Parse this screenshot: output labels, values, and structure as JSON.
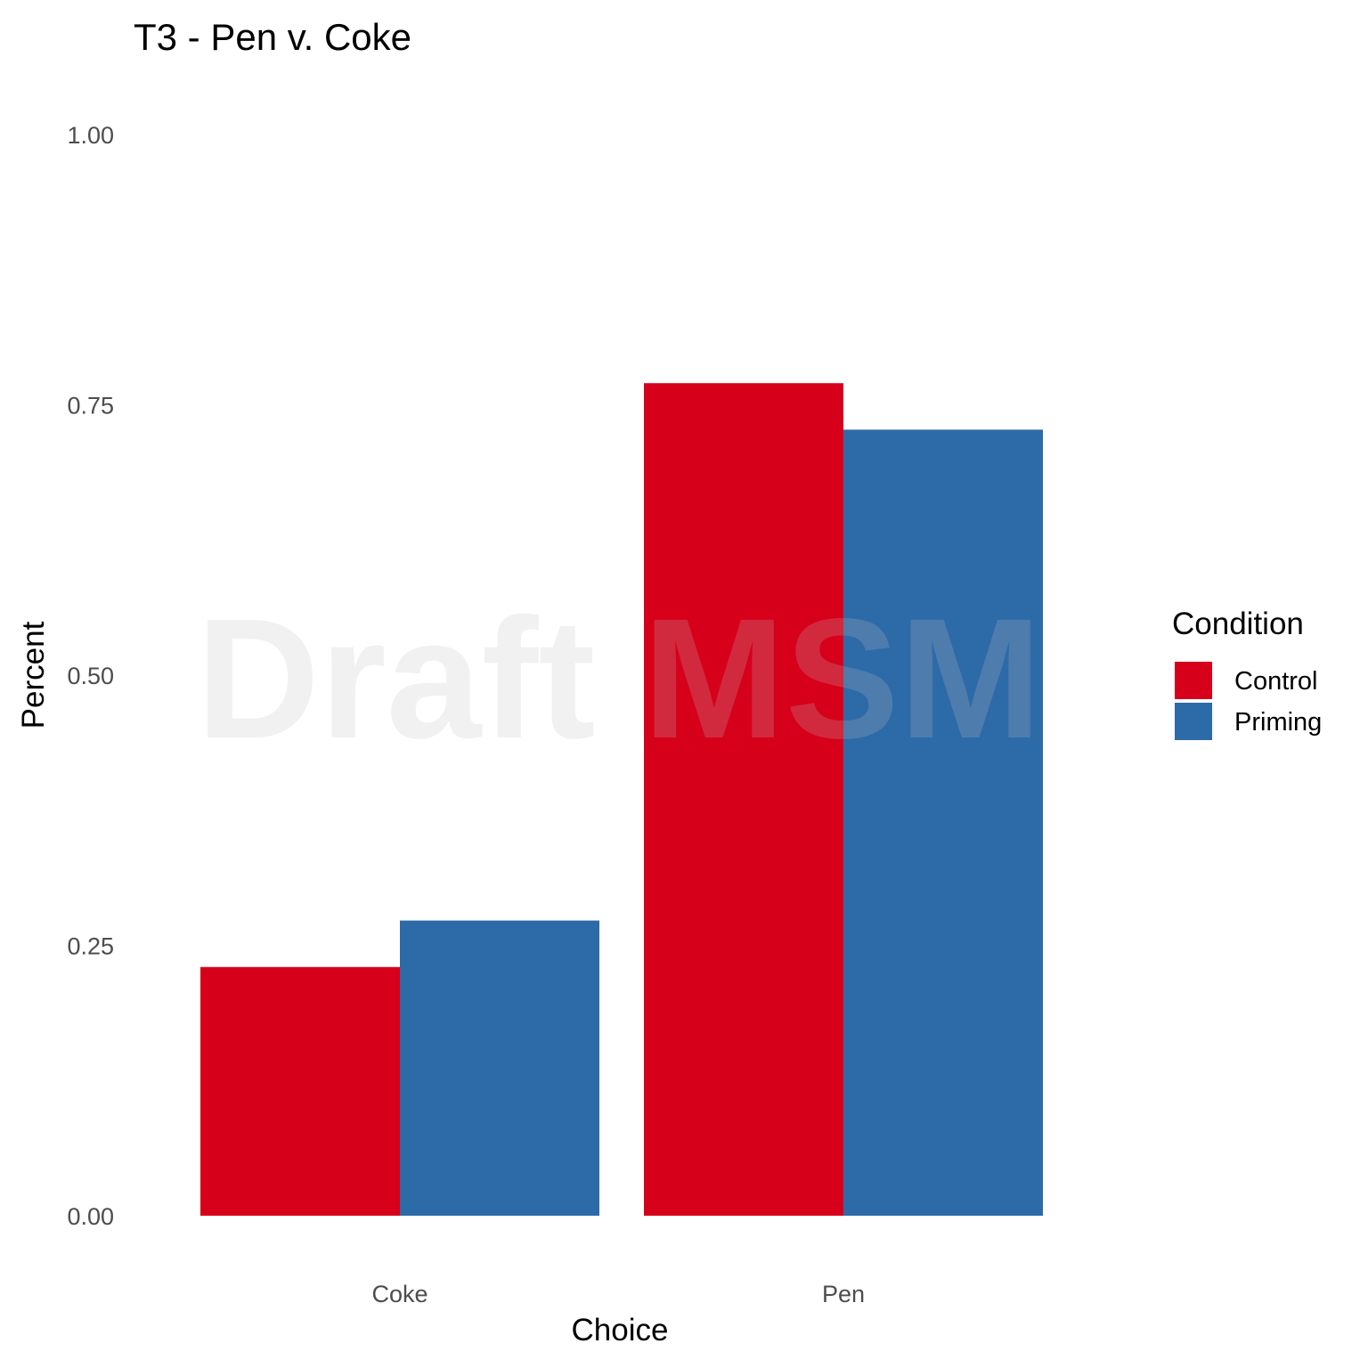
{
  "chart_data": {
    "type": "bar",
    "title": "T3 - Pen v. Coke",
    "xlabel": "Choice",
    "ylabel": "Percent",
    "categories": [
      "Coke",
      "Pen"
    ],
    "series": [
      {
        "name": "Control",
        "color": "#d7001a",
        "values": [
          0.23,
          0.77
        ]
      },
      {
        "name": "Priming",
        "color": "#2d6aa8",
        "values": [
          0.273,
          0.727
        ]
      }
    ],
    "ylim": [
      0,
      1
    ],
    "yticks": [
      0,
      0.25,
      0.5,
      0.75,
      1
    ],
    "ytick_labels": [
      "0.00",
      "0.25",
      "0.50",
      "0.75",
      "1.00"
    ],
    "legend": {
      "title": "Condition",
      "position": "right"
    },
    "grid": false
  },
  "watermark": "Draft MSM"
}
